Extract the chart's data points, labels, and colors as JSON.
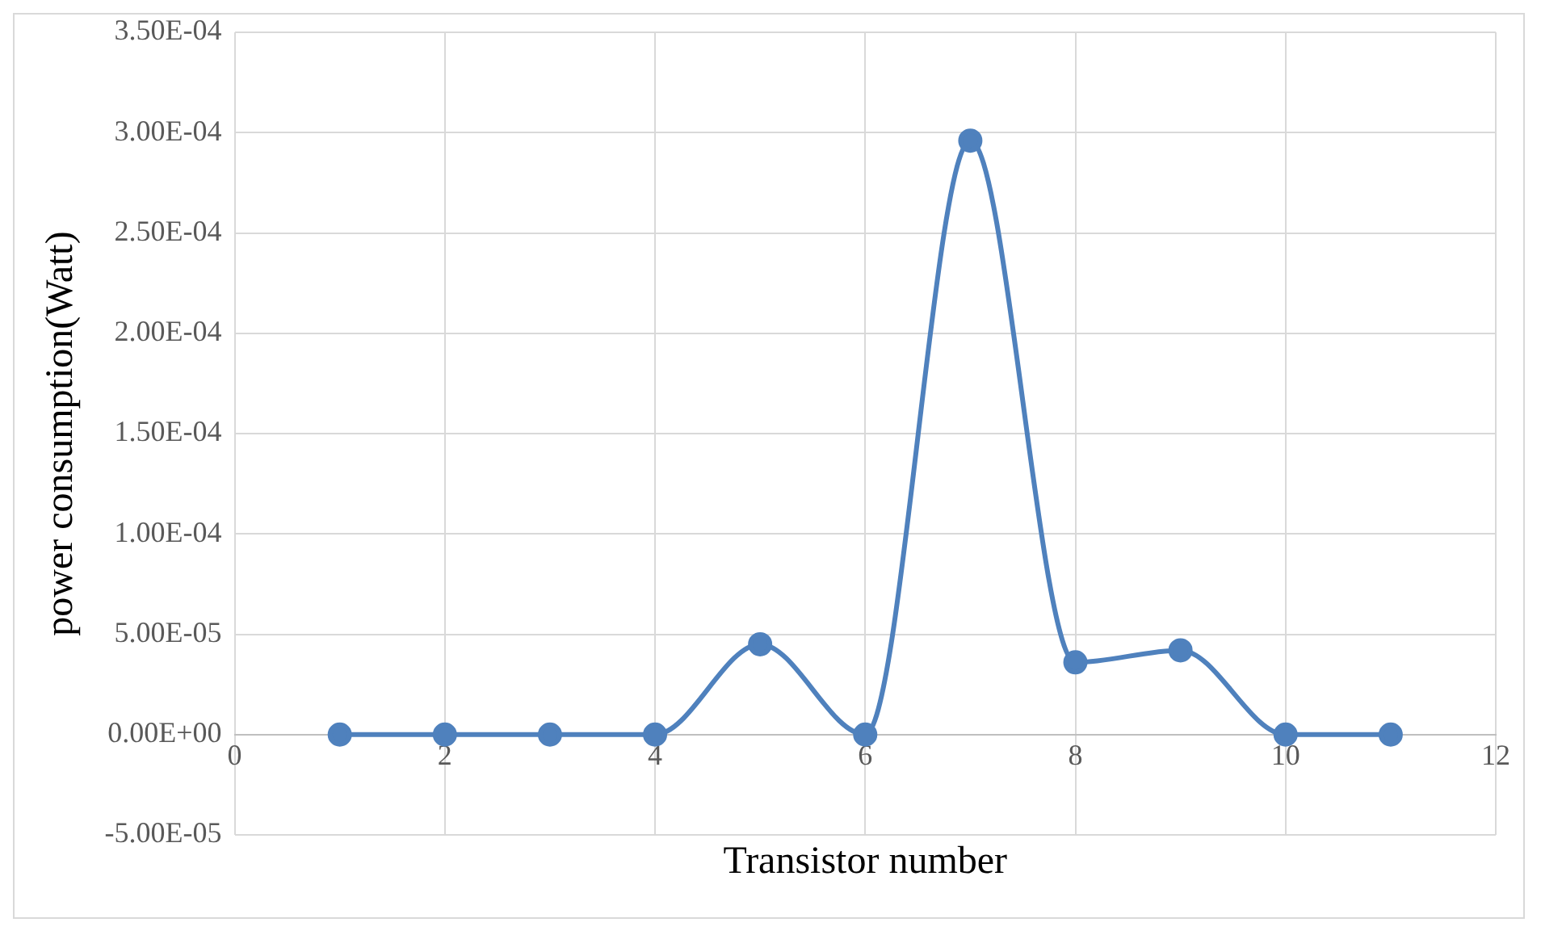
{
  "chart_data": {
    "type": "line",
    "xlabel": "Transistor number",
    "ylabel": "power consumption(Watt)",
    "x": [
      1,
      2,
      3,
      4,
      5,
      6,
      7,
      8,
      9,
      10,
      11
    ],
    "series": [
      {
        "color": "#4f81bd",
        "values": [
          0,
          0,
          0,
          0,
          4.5e-05,
          0,
          0.000296,
          3.6e-05,
          4.2e-05,
          0,
          0
        ]
      }
    ],
    "xlim": [
      0,
      12
    ],
    "xticks": [
      0,
      2,
      4,
      6,
      8,
      10,
      12
    ],
    "ylim": [
      -5e-05,
      0.00035
    ],
    "yticks": [
      {
        "value": -5e-05,
        "label": "-5.00E-05"
      },
      {
        "value": 0,
        "label": "0.00E+00"
      },
      {
        "value": 5e-05,
        "label": "5.00E-05"
      },
      {
        "value": 0.0001,
        "label": "1.00E-04"
      },
      {
        "value": 0.00015,
        "label": "1.50E-04"
      },
      {
        "value": 0.0002,
        "label": "2.00E-04"
      },
      {
        "value": 0.00025,
        "label": "2.50E-04"
      },
      {
        "value": 0.0003,
        "label": "3.00E-04"
      },
      {
        "value": 0.00035,
        "label": "3.50E-04"
      }
    ],
    "grid": true,
    "legend": false,
    "marker": "circle",
    "line_style": "solid"
  }
}
